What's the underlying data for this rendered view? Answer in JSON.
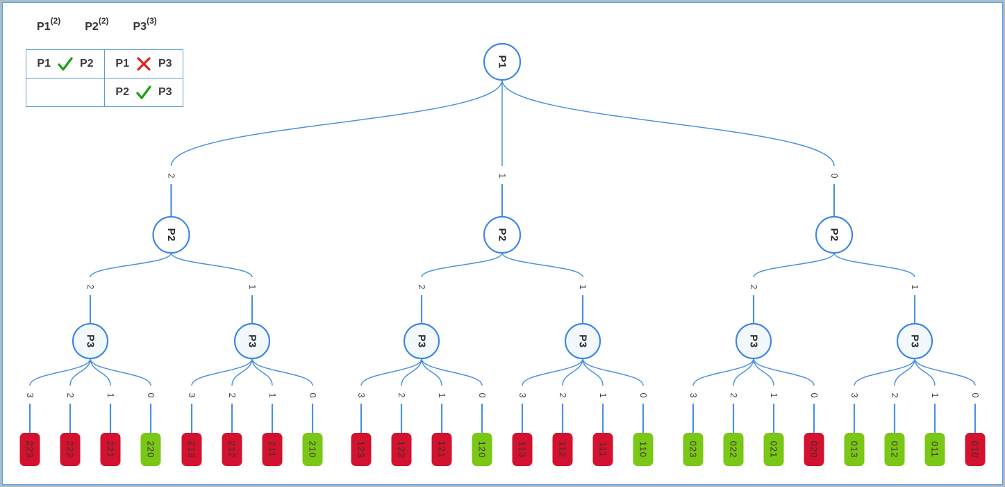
{
  "colors": {
    "frame_border": "#5b9bd5",
    "edge_blue": "#4a90e2",
    "node_border": "#3d86e8",
    "node_fill": "#ffffff",
    "p3_fill": "#f3f8fd",
    "leaf_red": "#d2122e",
    "leaf_green": "#7ac716",
    "check_green": "#22a018",
    "cross_red": "#dd2020"
  },
  "header": {
    "players": [
      {
        "name": "P1",
        "domain_size": "(2)"
      },
      {
        "name": "P2",
        "domain_size": "(2)"
      },
      {
        "name": "P3",
        "domain_size": "(3)"
      }
    ]
  },
  "constraints_table": {
    "cells": {
      "r0c0": {
        "left": "P1",
        "right": "P2",
        "relation": "satisfied",
        "icon": "check-icon"
      },
      "r0c1": {
        "left": "P1",
        "right": "P3",
        "relation": "violated",
        "icon": "cross-icon"
      },
      "r1c0": {
        "empty": true
      },
      "r1c1": {
        "left": "P2",
        "right": "P3",
        "relation": "satisfied",
        "icon": "check-icon"
      }
    }
  },
  "tree": {
    "root": {
      "label": "P1"
    },
    "branches": [
      {
        "edge_label": "2",
        "node": {
          "label": "P2"
        },
        "branches": [
          {
            "edge_label": "2",
            "node": {
              "label": "P3"
            },
            "leaves": [
              {
                "edge_label": "3",
                "value": "223",
                "status": "fail"
              },
              {
                "edge_label": "2",
                "value": "222",
                "status": "fail"
              },
              {
                "edge_label": "1",
                "value": "221",
                "status": "fail"
              },
              {
                "edge_label": "0",
                "value": "220",
                "status": "ok"
              }
            ]
          },
          {
            "edge_label": "1",
            "node": {
              "label": "P3"
            },
            "leaves": [
              {
                "edge_label": "3",
                "value": "213",
                "status": "fail"
              },
              {
                "edge_label": "2",
                "value": "212",
                "status": "fail"
              },
              {
                "edge_label": "1",
                "value": "211",
                "status": "fail"
              },
              {
                "edge_label": "0",
                "value": "210",
                "status": "ok"
              }
            ]
          }
        ]
      },
      {
        "edge_label": "1",
        "node": {
          "label": "P2"
        },
        "branches": [
          {
            "edge_label": "2",
            "node": {
              "label": "P3"
            },
            "leaves": [
              {
                "edge_label": "3",
                "value": "123",
                "status": "fail"
              },
              {
                "edge_label": "2",
                "value": "122",
                "status": "fail"
              },
              {
                "edge_label": "1",
                "value": "121",
                "status": "fail"
              },
              {
                "edge_label": "0",
                "value": "120",
                "status": "ok"
              }
            ]
          },
          {
            "edge_label": "1",
            "node": {
              "label": "P3"
            },
            "leaves": [
              {
                "edge_label": "3",
                "value": "113",
                "status": "fail"
              },
              {
                "edge_label": "2",
                "value": "112",
                "status": "fail"
              },
              {
                "edge_label": "1",
                "value": "111",
                "status": "fail"
              },
              {
                "edge_label": "0",
                "value": "110",
                "status": "ok"
              }
            ]
          }
        ]
      },
      {
        "edge_label": "0",
        "node": {
          "label": "P2"
        },
        "branches": [
          {
            "edge_label": "2",
            "node": {
              "label": "P3"
            },
            "leaves": [
              {
                "edge_label": "3",
                "value": "023",
                "status": "ok"
              },
              {
                "edge_label": "2",
                "value": "022",
                "status": "ok"
              },
              {
                "edge_label": "1",
                "value": "021",
                "status": "ok"
              },
              {
                "edge_label": "0",
                "value": "020",
                "status": "fail"
              }
            ]
          },
          {
            "edge_label": "1",
            "node": {
              "label": "P3"
            },
            "leaves": [
              {
                "edge_label": "3",
                "value": "013",
                "status": "ok"
              },
              {
                "edge_label": "2",
                "value": "012",
                "status": "ok"
              },
              {
                "edge_label": "1",
                "value": "011",
                "status": "ok"
              },
              {
                "edge_label": "0",
                "value": "010",
                "status": "fail"
              }
            ]
          }
        ]
      }
    ]
  }
}
